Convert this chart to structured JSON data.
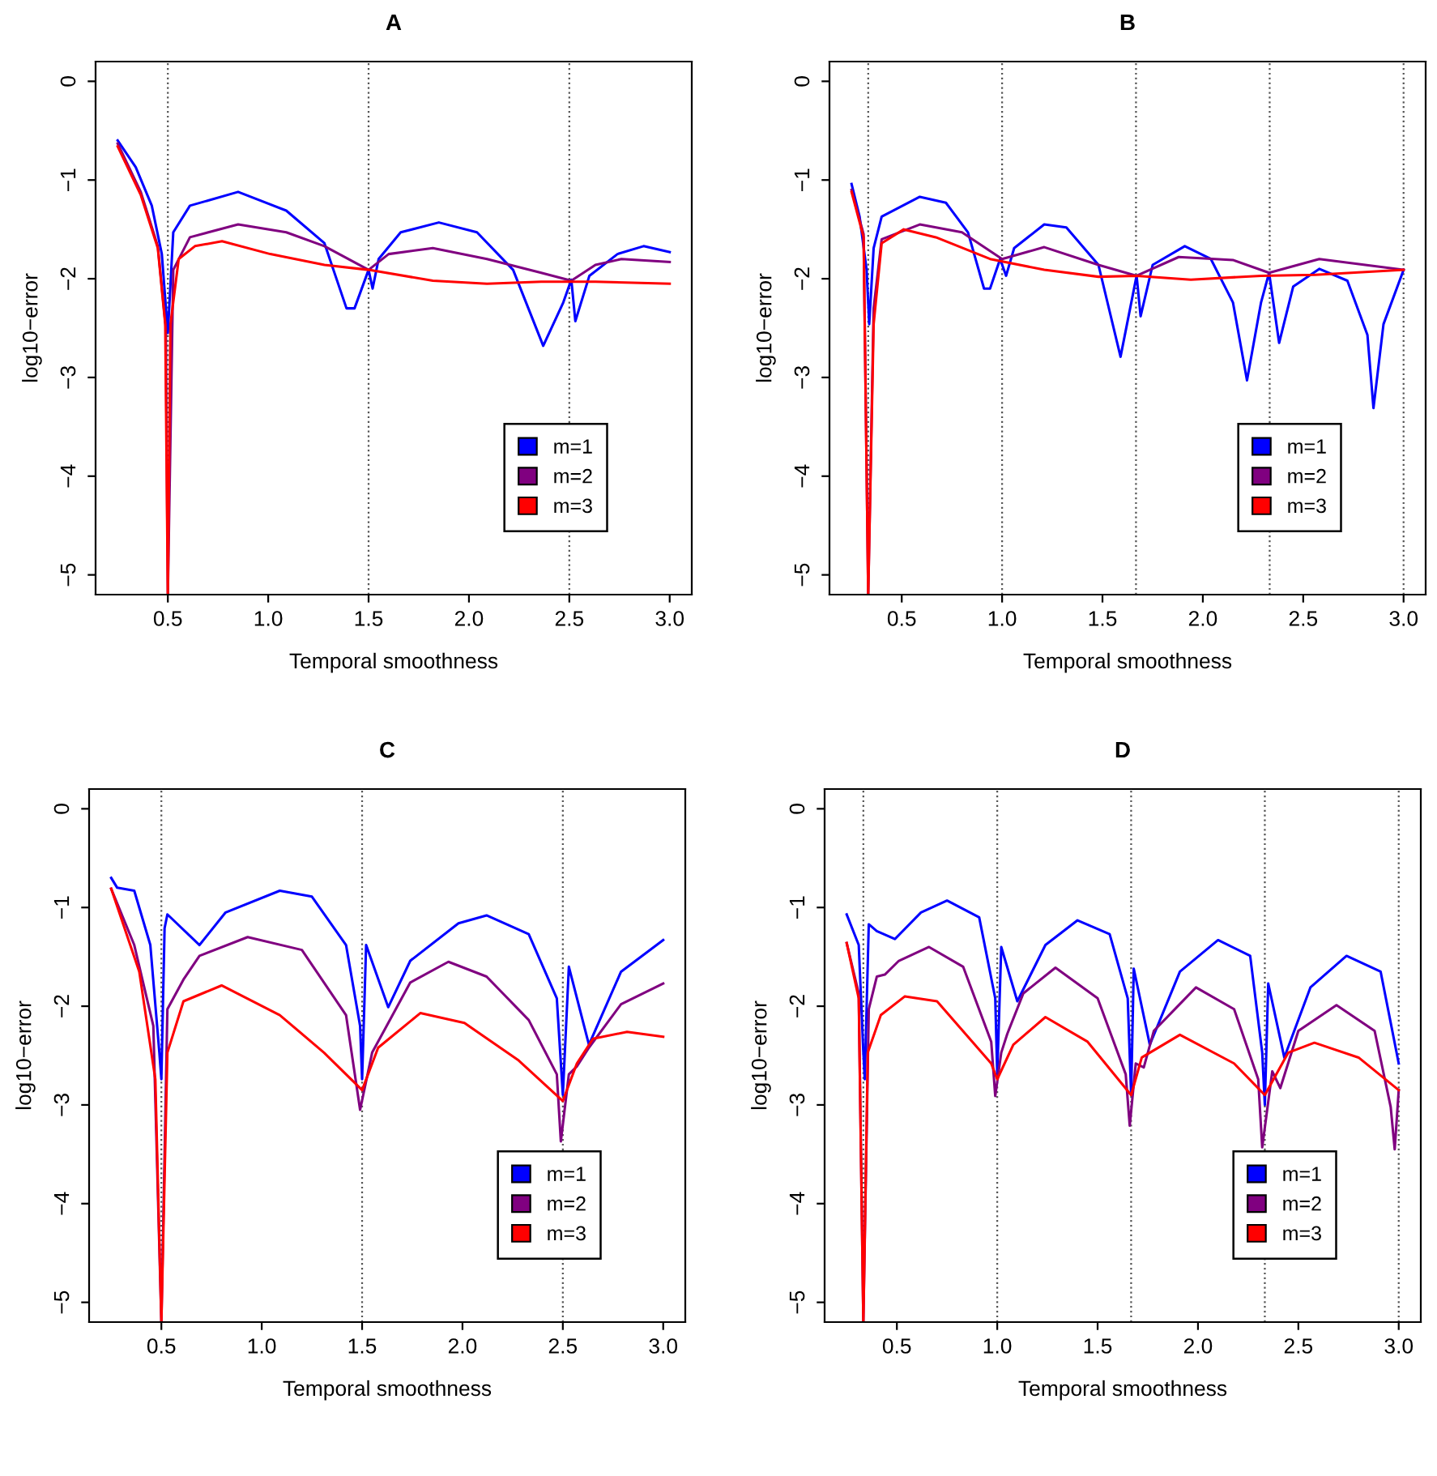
{
  "chart_data": [
    {
      "type": "line",
      "title": "A",
      "xlabel": "Temporal smoothness",
      "ylabel": "log10−error",
      "xlim": [
        0.14,
        3.11
      ],
      "ylim": [
        -5.2,
        0.2
      ],
      "xticks": [
        {
          "value": 0.5,
          "label": "0.5"
        },
        {
          "value": 1,
          "label": "1.0"
        },
        {
          "value": 1.5,
          "label": "1.5"
        },
        {
          "value": 2,
          "label": "2.0"
        },
        {
          "value": 2.5,
          "label": "2.5"
        },
        {
          "value": 3,
          "label": "3.0"
        }
      ],
      "yticks": [
        {
          "value": -5,
          "label": "−5"
        },
        {
          "value": -4,
          "label": "−4"
        },
        {
          "value": -3,
          "label": "−3"
        },
        {
          "value": -2,
          "label": "−2"
        },
        {
          "value": -1,
          "label": "−1"
        },
        {
          "value": 0,
          "label": "0"
        }
      ],
      "grid": false,
      "legend": "bottom right",
      "line_style": "solid",
      "marker": "none",
      "ref_lines": [
        {
          "axis": "x",
          "value": 0.5,
          "line_style": "dotted"
        },
        {
          "axis": "x",
          "value": 1.5,
          "line_style": "dotted"
        },
        {
          "axis": "x",
          "value": 2.5,
          "line_style": "dotted"
        }
      ],
      "series": [
        {
          "name": "m=1",
          "color": "#0000ff",
          "x": [
            0.25,
            0.34,
            0.42,
            0.47,
            0.5,
            0.527,
            0.61,
            0.85,
            1.09,
            1.28,
            1.39,
            1.43,
            1.5,
            1.52,
            1.55,
            1.66,
            1.85,
            2.04,
            2.22,
            2.37,
            2.47,
            2.51,
            2.53,
            2.6,
            2.74,
            2.87,
            3.0
          ],
          "values": [
            -0.6,
            -0.87,
            -1.26,
            -1.75,
            -2.55,
            -1.53,
            -1.26,
            -1.12,
            -1.31,
            -1.64,
            -2.3,
            -2.3,
            -1.91,
            -2.1,
            -1.8,
            -1.53,
            -1.43,
            -1.53,
            -1.91,
            -2.68,
            -2.24,
            -2.01,
            -2.43,
            -1.97,
            -1.75,
            -1.67,
            -1.73
          ]
        },
        {
          "name": "m=2",
          "color": "#800080",
          "x": [
            0.25,
            0.365,
            0.45,
            0.49,
            0.5,
            0.527,
            0.61,
            0.85,
            1.09,
            1.28,
            1.5,
            1.6,
            1.82,
            2.09,
            2.36,
            2.51,
            2.63,
            2.76,
            3.0
          ],
          "values": [
            -0.63,
            -1.12,
            -1.67,
            -2.5,
            -5.2,
            -1.91,
            -1.58,
            -1.45,
            -1.53,
            -1.67,
            -1.91,
            -1.75,
            -1.69,
            -1.8,
            -1.94,
            -2.02,
            -1.86,
            -1.8,
            -1.83
          ]
        },
        {
          "name": "m=3",
          "color": "#ff0000",
          "x": [
            0.25,
            0.365,
            0.45,
            0.487,
            0.5,
            0.513,
            0.554,
            0.635,
            0.77,
            1.01,
            1.28,
            1.5,
            1.82,
            2.09,
            2.36,
            2.63,
            3.0
          ],
          "values": [
            -0.66,
            -1.15,
            -1.69,
            -2.46,
            -5.2,
            -2.46,
            -1.8,
            -1.67,
            -1.62,
            -1.75,
            -1.86,
            -1.91,
            -2.02,
            -2.05,
            -2.03,
            -2.03,
            -2.05
          ]
        }
      ]
    },
    {
      "type": "line",
      "title": "B",
      "xlabel": "Temporal smoothness",
      "ylabel": "log10−error",
      "xlim": [
        0.14,
        3.11
      ],
      "ylim": [
        -5.2,
        0.2
      ],
      "xticks": [
        {
          "value": 0.5,
          "label": "0.5"
        },
        {
          "value": 1,
          "label": "1.0"
        },
        {
          "value": 1.5,
          "label": "1.5"
        },
        {
          "value": 2,
          "label": "2.0"
        },
        {
          "value": 2.5,
          "label": "2.5"
        },
        {
          "value": 3,
          "label": "3.0"
        }
      ],
      "yticks": [
        {
          "value": -5,
          "label": "−5"
        },
        {
          "value": -4,
          "label": "−4"
        },
        {
          "value": -3,
          "label": "−3"
        },
        {
          "value": -2,
          "label": "−2"
        },
        {
          "value": -1,
          "label": "−1"
        },
        {
          "value": 0,
          "label": "0"
        }
      ],
      "grid": false,
      "legend": "bottom right",
      "line_style": "solid",
      "marker": "none",
      "ref_lines": [
        {
          "axis": "x",
          "value": 0.333,
          "line_style": "dotted"
        },
        {
          "axis": "x",
          "value": 1,
          "line_style": "dotted"
        },
        {
          "axis": "x",
          "value": 1.667,
          "line_style": "dotted"
        },
        {
          "axis": "x",
          "value": 2.333,
          "line_style": "dotted"
        },
        {
          "axis": "x",
          "value": 3,
          "line_style": "dotted"
        }
      ],
      "series": [
        {
          "name": "m=1",
          "color": "#0000ff",
          "x": [
            0.25,
            0.29,
            0.325,
            0.338,
            0.36,
            0.4,
            0.59,
            0.72,
            0.83,
            0.91,
            0.94,
            0.99,
            1.02,
            1.06,
            1.21,
            1.32,
            1.48,
            1.59,
            1.67,
            1.69,
            1.75,
            1.91,
            2.04,
            2.15,
            2.22,
            2.29,
            2.33,
            2.38,
            2.45,
            2.58,
            2.72,
            2.82,
            2.85,
            2.9,
            3.0
          ],
          "values": [
            -1.04,
            -1.37,
            -1.91,
            -2.46,
            -1.69,
            -1.37,
            -1.17,
            -1.23,
            -1.53,
            -2.1,
            -2.1,
            -1.8,
            -1.97,
            -1.69,
            -1.45,
            -1.48,
            -1.86,
            -2.79,
            -1.97,
            -2.38,
            -1.86,
            -1.67,
            -1.8,
            -2.24,
            -3.03,
            -2.24,
            -1.94,
            -2.65,
            -2.08,
            -1.9,
            -2.02,
            -2.57,
            -3.31,
            -2.46,
            -1.91
          ]
        },
        {
          "name": "m=2",
          "color": "#800080",
          "x": [
            0.25,
            0.31,
            0.333,
            0.36,
            0.4,
            0.59,
            0.8,
            1.0,
            1.21,
            1.48,
            1.67,
            1.88,
            2.15,
            2.33,
            2.58,
            3.0
          ],
          "values": [
            -1.1,
            -1.55,
            -5.2,
            -2.3,
            -1.6,
            -1.45,
            -1.53,
            -1.8,
            -1.68,
            -1.86,
            -1.97,
            -1.78,
            -1.81,
            -1.94,
            -1.8,
            -1.91
          ]
        },
        {
          "name": "m=3",
          "color": "#ff0000",
          "x": [
            0.25,
            0.31,
            0.333,
            0.36,
            0.4,
            0.51,
            0.67,
            0.94,
            1.21,
            1.48,
            1.67,
            1.94,
            2.29,
            2.56,
            3.0
          ],
          "values": [
            -1.12,
            -1.58,
            -5.2,
            -2.46,
            -1.64,
            -1.5,
            -1.58,
            -1.8,
            -1.91,
            -1.98,
            -1.97,
            -2.01,
            -1.97,
            -1.96,
            -1.91
          ]
        }
      ]
    },
    {
      "type": "line",
      "title": "C",
      "xlabel": "Temporal smoothness",
      "ylabel": "log10−error",
      "xlim": [
        0.14,
        3.11
      ],
      "ylim": [
        -5.2,
        0.2
      ],
      "xticks": [
        {
          "value": 0.5,
          "label": "0.5"
        },
        {
          "value": 1,
          "label": "1.0"
        },
        {
          "value": 1.5,
          "label": "1.5"
        },
        {
          "value": 2,
          "label": "2.0"
        },
        {
          "value": 2.5,
          "label": "2.5"
        },
        {
          "value": 3,
          "label": "3.0"
        }
      ],
      "yticks": [
        {
          "value": -5,
          "label": "−5"
        },
        {
          "value": -4,
          "label": "−4"
        },
        {
          "value": -3,
          "label": "−3"
        },
        {
          "value": -2,
          "label": "−2"
        },
        {
          "value": -1,
          "label": "−1"
        },
        {
          "value": 0,
          "label": "0"
        }
      ],
      "grid": false,
      "legend": "bottom right",
      "line_style": "solid",
      "marker": "none",
      "ref_lines": [
        {
          "axis": "x",
          "value": 0.5,
          "line_style": "dotted"
        },
        {
          "axis": "x",
          "value": 1.5,
          "line_style": "dotted"
        },
        {
          "axis": "x",
          "value": 2.5,
          "line_style": "dotted"
        }
      ],
      "series": [
        {
          "name": "m=1",
          "color": "#0000ff",
          "x": [
            0.25,
            0.28,
            0.365,
            0.445,
            0.49,
            0.5,
            0.516,
            0.53,
            0.69,
            0.82,
            1.09,
            1.25,
            1.42,
            1.49,
            1.5,
            1.52,
            1.63,
            1.74,
            1.98,
            2.12,
            2.33,
            2.47,
            2.5,
            2.53,
            2.63,
            2.79,
            3.0
          ],
          "values": [
            -0.7,
            -0.8,
            -0.83,
            -1.38,
            -2.47,
            -2.74,
            -1.21,
            -1.07,
            -1.38,
            -1.05,
            -0.83,
            -0.89,
            -1.38,
            -2.2,
            -2.74,
            -1.38,
            -2.01,
            -1.54,
            -1.16,
            -1.08,
            -1.27,
            -1.92,
            -2.9,
            -1.6,
            -2.39,
            -1.65,
            -1.33
          ]
        },
        {
          "name": "m=2",
          "color": "#800080",
          "x": [
            0.25,
            0.365,
            0.46,
            0.5,
            0.53,
            0.61,
            0.69,
            0.93,
            1.2,
            1.42,
            1.49,
            1.55,
            1.74,
            1.93,
            2.12,
            2.33,
            2.47,
            2.49,
            2.53,
            2.57,
            2.63,
            2.79,
            3.0
          ],
          "values": [
            -0.81,
            -1.38,
            -2.2,
            -5.2,
            -2.03,
            -1.73,
            -1.49,
            -1.3,
            -1.43,
            -2.09,
            -3.05,
            -2.47,
            -1.76,
            -1.55,
            -1.7,
            -2.14,
            -2.69,
            -3.37,
            -2.69,
            -2.61,
            -2.42,
            -1.98,
            -1.77
          ]
        },
        {
          "name": "m=3",
          "color": "#ff0000",
          "x": [
            0.25,
            0.39,
            0.47,
            0.5,
            0.53,
            0.61,
            0.8,
            1.09,
            1.31,
            1.5,
            1.58,
            1.79,
            2.01,
            2.28,
            2.5,
            2.57,
            2.65,
            2.82,
            3.0
          ],
          "values": [
            -0.81,
            -1.65,
            -2.74,
            -5.2,
            -2.47,
            -1.95,
            -1.79,
            -2.09,
            -2.47,
            -2.85,
            -2.42,
            -2.07,
            -2.17,
            -2.55,
            -2.96,
            -2.58,
            -2.33,
            -2.26,
            -2.31
          ]
        }
      ]
    },
    {
      "type": "line",
      "title": "D",
      "xlabel": "Temporal smoothness",
      "ylabel": "log10−error",
      "xlim": [
        0.14,
        3.11
      ],
      "ylim": [
        -5.2,
        0.2
      ],
      "xticks": [
        {
          "value": 0.5,
          "label": "0.5"
        },
        {
          "value": 1,
          "label": "1.0"
        },
        {
          "value": 1.5,
          "label": "1.5"
        },
        {
          "value": 2,
          "label": "2.0"
        },
        {
          "value": 2.5,
          "label": "2.5"
        },
        {
          "value": 3,
          "label": "3.0"
        }
      ],
      "yticks": [
        {
          "value": -5,
          "label": "−5"
        },
        {
          "value": -4,
          "label": "−4"
        },
        {
          "value": -3,
          "label": "−3"
        },
        {
          "value": -2,
          "label": "−2"
        },
        {
          "value": -1,
          "label": "−1"
        },
        {
          "value": 0,
          "label": "0"
        }
      ],
      "grid": false,
      "legend": "bottom right",
      "line_style": "solid",
      "marker": "none",
      "ref_lines": [
        {
          "axis": "x",
          "value": 0.333,
          "line_style": "dotted"
        },
        {
          "axis": "x",
          "value": 1,
          "line_style": "dotted"
        },
        {
          "axis": "x",
          "value": 1.667,
          "line_style": "dotted"
        },
        {
          "axis": "x",
          "value": 2.333,
          "line_style": "dotted"
        },
        {
          "axis": "x",
          "value": 3,
          "line_style": "dotted"
        }
      ],
      "series": [
        {
          "name": "m=1",
          "color": "#0000ff",
          "x": [
            0.25,
            0.31,
            0.333,
            0.34,
            0.36,
            0.4,
            0.49,
            0.62,
            0.75,
            0.91,
            0.99,
            1.0,
            1.02,
            1.1,
            1.24,
            1.4,
            1.56,
            1.65,
            1.667,
            1.68,
            1.76,
            1.91,
            2.1,
            2.26,
            2.32,
            2.333,
            2.35,
            2.43,
            2.56,
            2.74,
            2.91,
            3.0
          ],
          "values": [
            -1.07,
            -1.38,
            -2.47,
            -2.74,
            -1.17,
            -1.24,
            -1.32,
            -1.05,
            -0.93,
            -1.1,
            -1.92,
            -2.69,
            -1.4,
            -1.95,
            -1.38,
            -1.13,
            -1.27,
            -1.92,
            -2.9,
            -1.62,
            -2.39,
            -1.65,
            -1.33,
            -1.49,
            -2.47,
            -3.0,
            -1.77,
            -2.52,
            -1.81,
            -1.49,
            -1.65,
            -2.58
          ]
        },
        {
          "name": "m=2",
          "color": "#800080",
          "x": [
            0.25,
            0.31,
            0.333,
            0.36,
            0.4,
            0.44,
            0.51,
            0.66,
            0.83,
            0.97,
            0.99,
            1.02,
            1.05,
            1.13,
            1.29,
            1.5,
            1.64,
            1.66,
            1.69,
            1.73,
            1.78,
            1.99,
            2.18,
            2.3,
            2.32,
            2.37,
            2.41,
            2.5,
            2.69,
            2.88,
            2.96,
            2.98,
            3.0
          ],
          "values": [
            -1.36,
            -1.87,
            -5.2,
            -2.03,
            -1.7,
            -1.68,
            -1.54,
            -1.4,
            -1.6,
            -2.36,
            -2.91,
            -2.47,
            -2.28,
            -1.87,
            -1.61,
            -1.92,
            -2.69,
            -3.21,
            -2.58,
            -2.62,
            -2.25,
            -1.81,
            -2.03,
            -2.74,
            -3.43,
            -2.66,
            -2.83,
            -2.25,
            -1.99,
            -2.25,
            -3.02,
            -3.45,
            -2.85
          ]
        },
        {
          "name": "m=3",
          "color": "#ff0000",
          "x": [
            0.25,
            0.31,
            0.333,
            0.355,
            0.42,
            0.54,
            0.7,
            0.97,
            1.0,
            1.08,
            1.24,
            1.45,
            1.667,
            1.72,
            1.91,
            2.18,
            2.333,
            2.45,
            2.58,
            2.8,
            3.0
          ],
          "values": [
            -1.36,
            -1.92,
            -5.2,
            -2.47,
            -2.09,
            -1.9,
            -1.95,
            -2.58,
            -2.74,
            -2.39,
            -2.11,
            -2.36,
            -2.9,
            -2.52,
            -2.29,
            -2.58,
            -2.9,
            -2.47,
            -2.37,
            -2.52,
            -2.85
          ]
        }
      ]
    }
  ]
}
